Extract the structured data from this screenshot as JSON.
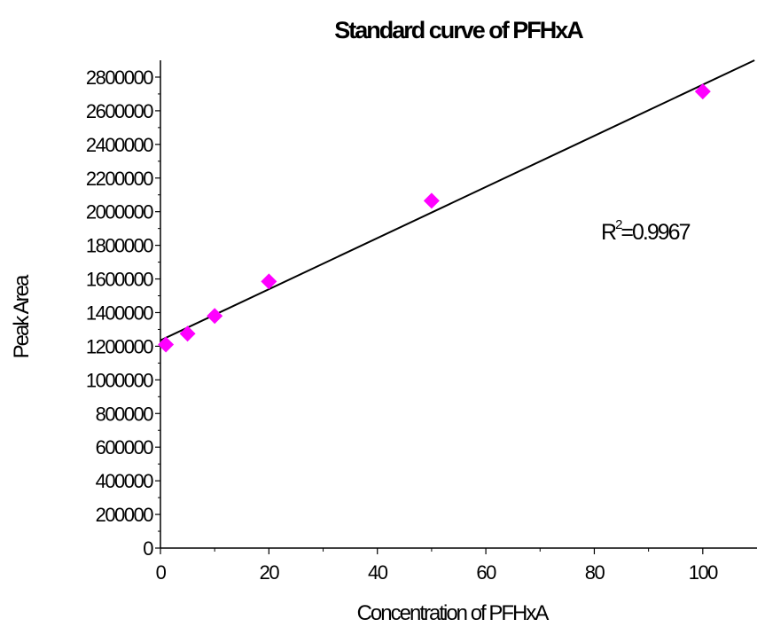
{
  "chart_data": {
    "type": "scatter",
    "title": "Standard curve of PFHxA",
    "xlabel": "Concentration of PFHxA",
    "ylabel": "Peak Area",
    "xlim": [
      0,
      110
    ],
    "ylim": [
      0,
      2900000
    ],
    "x_ticks": [
      0,
      20,
      40,
      60,
      80,
      100
    ],
    "x_tick_labels": [
      "0",
      "20",
      "40",
      "60",
      "80",
      "100"
    ],
    "y_ticks": [
      0,
      200000,
      400000,
      600000,
      800000,
      1000000,
      1200000,
      1400000,
      1600000,
      1800000,
      2000000,
      2200000,
      2400000,
      2600000,
      2800000
    ],
    "y_tick_labels": [
      "0",
      "200000",
      "400000",
      "600000",
      "800000",
      "1000000",
      "1200000",
      "1400000",
      "1600000",
      "1800000",
      "2000000",
      "2200000",
      "2400000",
      "2600000",
      "2800000"
    ],
    "series": [
      {
        "marker": "diamond",
        "color": "#ff00ff",
        "points": [
          {
            "x": 1,
            "y": 1210000
          },
          {
            "x": 5,
            "y": 1275000
          },
          {
            "x": 10,
            "y": 1380000
          },
          {
            "x": 20,
            "y": 1585000
          },
          {
            "x": 50,
            "y": 2065000
          },
          {
            "x": 100,
            "y": 2715000
          }
        ]
      }
    ],
    "trendline": {
      "type": "linear",
      "slope": 15200,
      "intercept": 1235000,
      "color": "#000000"
    },
    "annotation": {
      "base": "R",
      "superscript": "2",
      "rest": "=0.9967"
    },
    "grid": false,
    "legend": "none"
  }
}
